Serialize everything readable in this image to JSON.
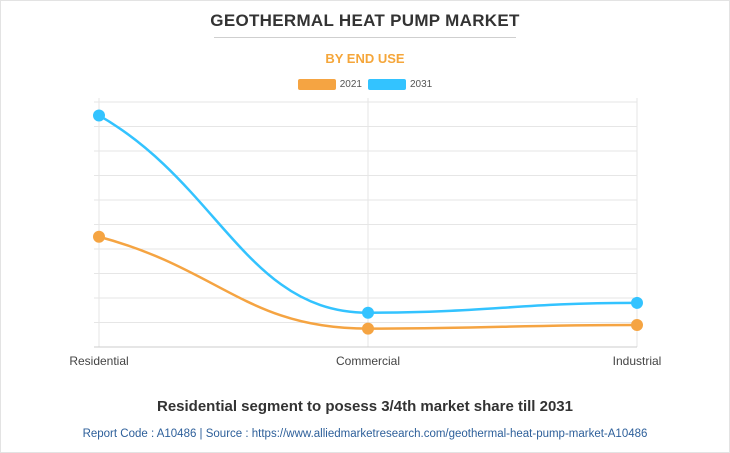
{
  "header": {
    "title": "GEOTHERMAL HEAT PUMP MARKET",
    "subtitle": "BY END USE"
  },
  "colors": {
    "series_2021": "#f5a442",
    "series_2031": "#33c3ff",
    "subtitle": "#f5a63a",
    "footer": "#2d5f9a"
  },
  "chart_data": {
    "type": "line",
    "title": "GEOTHERMAL HEAT PUMP MARKET",
    "subtitle": "BY END USE",
    "categories": [
      "Residential",
      "Commercial",
      "Industrial"
    ],
    "series": [
      {
        "name": "2021",
        "values": [
          4.5,
          0.75,
          0.9
        ]
      },
      {
        "name": "2031",
        "values": [
          9.45,
          1.4,
          1.8
        ]
      }
    ],
    "ylim": [
      0,
      10
    ],
    "ytick_step": 1,
    "grid": true,
    "legend": "top-center",
    "xlabel": "",
    "ylabel": ""
  },
  "footer": {
    "headline": "Residential segment to posess 3/4th market share till 2031",
    "source": "Report Code : A10486  |  Source : https://www.alliedmarketresearch.com/geothermal-heat-pump-market-A10486"
  }
}
